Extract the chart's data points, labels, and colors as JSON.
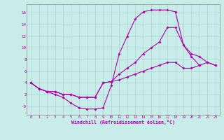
{
  "xlabel": "Windchill (Refroidissement éolien,°C)",
  "background_color": "#c8ece8",
  "grid_color": "#b0d0cc",
  "line_color": "#aa00aa",
  "xlim": [
    -0.5,
    23.5
  ],
  "ylim": [
    -1.5,
    17.5
  ],
  "xticks": [
    0,
    1,
    2,
    3,
    4,
    5,
    6,
    7,
    8,
    9,
    10,
    11,
    12,
    13,
    14,
    15,
    16,
    17,
    18,
    19,
    20,
    21,
    22,
    23
  ],
  "yticks": [
    0,
    2,
    4,
    6,
    8,
    10,
    12,
    14,
    16
  ],
  "ytick_labels": [
    "-0",
    "2",
    "4",
    "6",
    "8",
    "10",
    "12",
    "14",
    "16"
  ],
  "line1_x": [
    0,
    1,
    2,
    3,
    4,
    5,
    6,
    7,
    8,
    9,
    10,
    11,
    12,
    13,
    14,
    15,
    16,
    17,
    18,
    19,
    20,
    21
  ],
  "line1_y": [
    4.0,
    3.0,
    2.5,
    2.0,
    1.5,
    0.5,
    -0.3,
    -0.5,
    -0.5,
    -0.3,
    3.5,
    9.0,
    12.0,
    15.0,
    16.2,
    16.5,
    16.5,
    16.5,
    16.2,
    10.5,
    8.5,
    7.0
  ],
  "line2_x": [
    0,
    1,
    2,
    3,
    4,
    5,
    6,
    7,
    8,
    9,
    10,
    11,
    12,
    13,
    14,
    15,
    16,
    17,
    18,
    19,
    20,
    21,
    22,
    23
  ],
  "line2_y": [
    4.0,
    3.0,
    2.5,
    2.5,
    2.0,
    2.0,
    1.5,
    1.5,
    1.5,
    4.0,
    4.2,
    5.5,
    6.5,
    7.5,
    9.0,
    10.0,
    11.0,
    13.5,
    13.5,
    10.5,
    9.0,
    8.5,
    7.5,
    7.0
  ],
  "line3_x": [
    0,
    1,
    2,
    3,
    4,
    5,
    6,
    7,
    8,
    9,
    10,
    11,
    12,
    13,
    14,
    15,
    16,
    17,
    18,
    19,
    20,
    21,
    22,
    23
  ],
  "line3_y": [
    4.0,
    3.0,
    2.5,
    2.5,
    2.0,
    2.0,
    1.5,
    1.5,
    1.5,
    4.0,
    4.2,
    4.5,
    5.0,
    5.5,
    6.0,
    6.5,
    7.0,
    7.5,
    7.5,
    6.5,
    6.5,
    7.0,
    7.5,
    7.0
  ],
  "marker_size": 2.0,
  "line_width": 0.8
}
